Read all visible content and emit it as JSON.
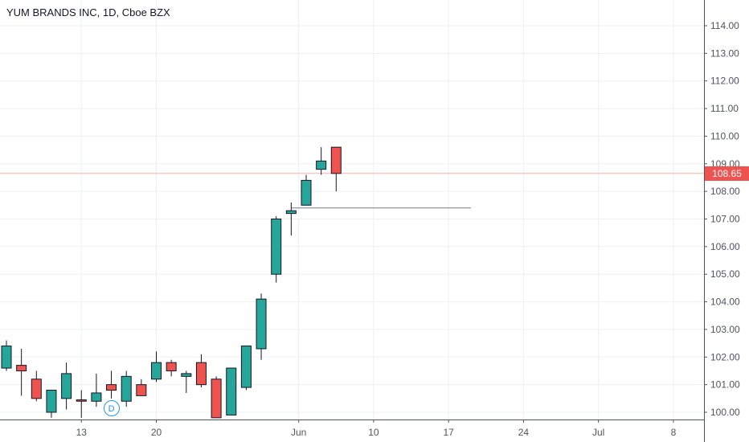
{
  "chart_data": {
    "type": "candlestick",
    "title": "YUM BRANDS INC, 1D, Cboe BZX",
    "ylim": [
      99.8,
      114.4
    ],
    "y_ticks": [
      "100.00",
      "101.00",
      "102.00",
      "103.00",
      "104.00",
      "105.00",
      "106.00",
      "107.00",
      "108.00",
      "109.00",
      "110.00",
      "111.00",
      "112.00",
      "113.00",
      "114.00"
    ],
    "x_ticks": [
      {
        "label": "13",
        "index": 5
      },
      {
        "label": "20",
        "index": 10
      },
      {
        "label": "Jun",
        "index": 19.5
      },
      {
        "label": "10",
        "index": 24.5
      },
      {
        "label": "17",
        "index": 29.5
      },
      {
        "label": "24",
        "index": 34.5
      },
      {
        "label": "Jul",
        "index": 39.5
      },
      {
        "label": "8",
        "index": 44.5
      }
    ],
    "candles": [
      {
        "open": 101.6,
        "high": 102.6,
        "low": 101.5,
        "close": 102.4
      },
      {
        "open": 101.7,
        "high": 102.3,
        "low": 100.6,
        "close": 101.5
      },
      {
        "open": 101.2,
        "high": 101.5,
        "low": 100.4,
        "close": 100.5
      },
      {
        "open": 100.0,
        "high": 100.8,
        "low": 99.8,
        "close": 100.8
      },
      {
        "open": 100.5,
        "high": 101.8,
        "low": 100.1,
        "close": 101.4
      },
      {
        "open": 100.45,
        "high": 100.8,
        "low": 99.8,
        "close": 100.4
      },
      {
        "open": 100.4,
        "high": 101.4,
        "low": 100.2,
        "close": 100.7
      },
      {
        "open": 101.0,
        "high": 101.5,
        "low": 100.5,
        "close": 100.8
      },
      {
        "open": 100.4,
        "high": 101.5,
        "low": 100.2,
        "close": 101.3
      },
      {
        "open": 101.0,
        "high": 101.2,
        "low": 100.6,
        "close": 100.6
      },
      {
        "open": 101.2,
        "high": 102.2,
        "low": 101.1,
        "close": 101.8
      },
      {
        "open": 101.8,
        "high": 101.9,
        "low": 101.3,
        "close": 101.5
      },
      {
        "open": 101.3,
        "high": 101.5,
        "low": 100.7,
        "close": 101.4
      },
      {
        "open": 101.8,
        "high": 102.1,
        "low": 100.9,
        "close": 101.0
      },
      {
        "open": 101.2,
        "high": 101.3,
        "low": 99.8,
        "close": 99.8
      },
      {
        "open": 99.9,
        "high": 101.6,
        "low": 99.9,
        "close": 101.6
      },
      {
        "open": 100.9,
        "high": 102.4,
        "low": 100.8,
        "close": 102.4
      },
      {
        "open": 102.3,
        "high": 104.3,
        "low": 101.9,
        "close": 104.1
      },
      {
        "open": 105.0,
        "high": 107.1,
        "low": 104.7,
        "close": 107.0
      },
      {
        "open": 107.2,
        "high": 107.6,
        "low": 106.4,
        "close": 107.3
      },
      {
        "open": 107.5,
        "high": 108.6,
        "low": 107.5,
        "close": 108.4
      },
      {
        "open": 108.8,
        "high": 109.6,
        "low": 108.6,
        "close": 109.1
      },
      {
        "open": 109.6,
        "high": 109.6,
        "low": 108.0,
        "close": 108.65
      }
    ],
    "horizontal_line": {
      "value": 107.4,
      "from_index": 19,
      "to_index": 31
    },
    "last_price": {
      "value": 108.65,
      "label": "108.65"
    },
    "dividend_marker": {
      "label": "D",
      "index": 7
    }
  },
  "colors": {
    "up": "#26a69a",
    "down": "#ef5350",
    "wick": "#131722",
    "grid": "#eef0f3",
    "axis": "#50535e",
    "price_line": "#f7b0b0",
    "hline": "#787b86",
    "dividend": "#2196f3"
  }
}
